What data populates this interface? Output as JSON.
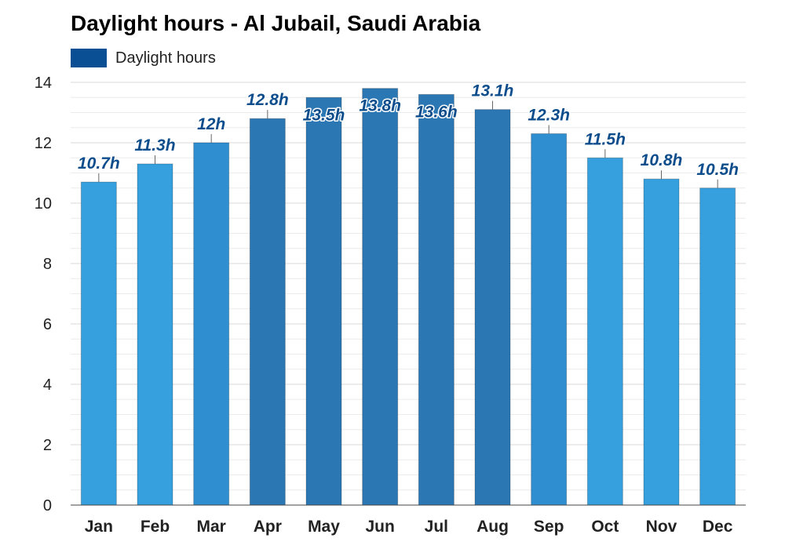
{
  "chart_data": {
    "type": "bar",
    "title": "Daylight hours - Al Jubail, Saudi Arabia",
    "categories": [
      "Jan",
      "Feb",
      "Mar",
      "Apr",
      "May",
      "Jun",
      "Jul",
      "Aug",
      "Sep",
      "Oct",
      "Nov",
      "Dec"
    ],
    "series": [
      {
        "name": "Daylight hours",
        "values": [
          10.7,
          11.3,
          12,
          12.8,
          13.5,
          13.8,
          13.6,
          13.1,
          12.3,
          11.5,
          10.8,
          10.5
        ],
        "data_labels": [
          "10.7h",
          "11.3h",
          "12h",
          "12.8h",
          "13.5h",
          "13.8h",
          "13.6h",
          "13.1h",
          "12.3h",
          "11.5h",
          "10.8h",
          "10.5h"
        ]
      }
    ],
    "ylim": [
      0,
      14
    ],
    "yticks": [
      0,
      2,
      4,
      6,
      8,
      10,
      12,
      14
    ],
    "grid": true,
    "legend": "top-left",
    "colors": {
      "legend": "#0a4f94",
      "bar_short": "#35a0dd",
      "bar_mid": "#2f8ed0",
      "bar_long": "#2b77b4",
      "label": "#0d4d8c"
    }
  }
}
